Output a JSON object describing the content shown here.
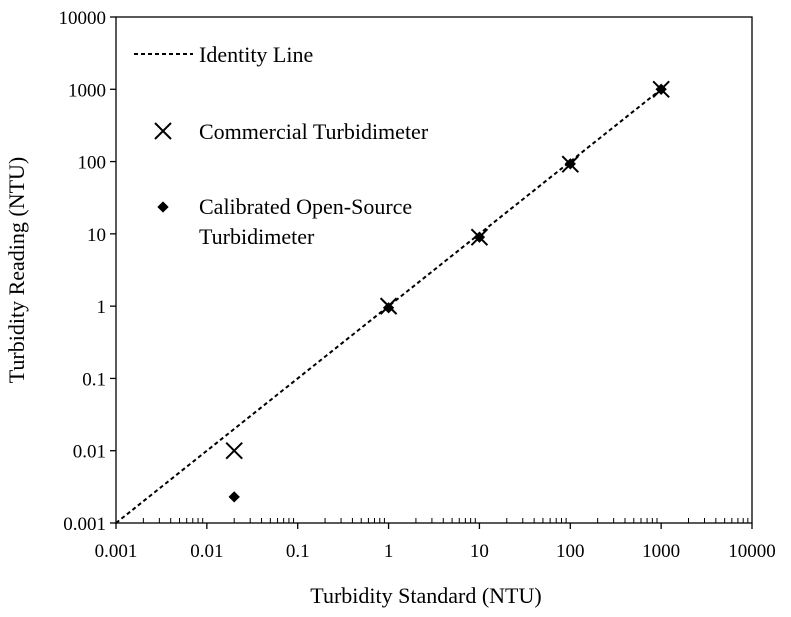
{
  "chart_data": {
    "type": "scatter",
    "title": "",
    "xlabel": "Turbidity Standard (NTU)",
    "ylabel": "Turbidity Reading (NTU)",
    "xscale": "log",
    "yscale": "log",
    "xlim": [
      0.001,
      10000
    ],
    "ylim": [
      0.001,
      10000
    ],
    "grid": false,
    "legend_position": "top-left",
    "x_tick_labels": [
      "0.001",
      "0.01",
      "0.1",
      "1",
      "10",
      "100",
      "1000",
      "10000"
    ],
    "y_tick_labels": [
      "0.001",
      "0.01",
      "0.1",
      "1",
      "10",
      "100",
      "1000",
      "10000"
    ],
    "identity_line": {
      "name": "Identity Line",
      "style": "dashed",
      "from": [
        0.001,
        0.001
      ],
      "to": [
        1000,
        1000
      ]
    },
    "series": [
      {
        "name": "Commercial Turbidimeter",
        "marker": "x",
        "points": [
          {
            "x": 0.02,
            "y": 0.01
          },
          {
            "x": 1,
            "y": 1
          },
          {
            "x": 10,
            "y": 9
          },
          {
            "x": 100,
            "y": 92
          },
          {
            "x": 1000,
            "y": 1000
          }
        ]
      },
      {
        "name": "Calibrated Open-Source Turbidimeter",
        "name_lines": [
          "Calibrated Open-Source",
          "Turbidimeter"
        ],
        "marker": "diamond",
        "points": [
          {
            "x": 0.02,
            "y": 0.0023
          },
          {
            "x": 1,
            "y": 0.95
          },
          {
            "x": 10,
            "y": 9
          },
          {
            "x": 100,
            "y": 93
          },
          {
            "x": 1000,
            "y": 1000
          }
        ]
      }
    ]
  }
}
